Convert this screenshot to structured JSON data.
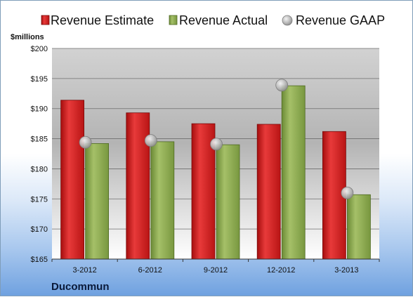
{
  "chart_data": {
    "type": "bar",
    "unit_label": "$millions",
    "company": "Ducommun",
    "categories": [
      "3-2012",
      "6-2012",
      "9-2012",
      "12-2012",
      "3-2013"
    ],
    "series": [
      {
        "name": "Revenue Estimate",
        "kind": "bar",
        "color": "#d42020",
        "values": [
          191.4,
          189.3,
          187.5,
          187.4,
          186.2
        ]
      },
      {
        "name": "Revenue Actual",
        "kind": "bar",
        "color": "#8aa84e",
        "values": [
          184.2,
          184.5,
          184.0,
          193.8,
          175.7
        ]
      },
      {
        "name": "Revenue GAAP",
        "kind": "marker",
        "color": "#b8b8b8",
        "values": [
          184.4,
          184.7,
          184.1,
          193.9,
          176.0
        ]
      }
    ],
    "ylim": [
      165,
      200
    ],
    "yticks": [
      165,
      170,
      175,
      180,
      185,
      190,
      195,
      200
    ],
    "ytick_labels": [
      "$165",
      "$170",
      "$175",
      "$180",
      "$185",
      "$190",
      "$195",
      "$200"
    ],
    "grid": true,
    "legend_position": "top"
  }
}
